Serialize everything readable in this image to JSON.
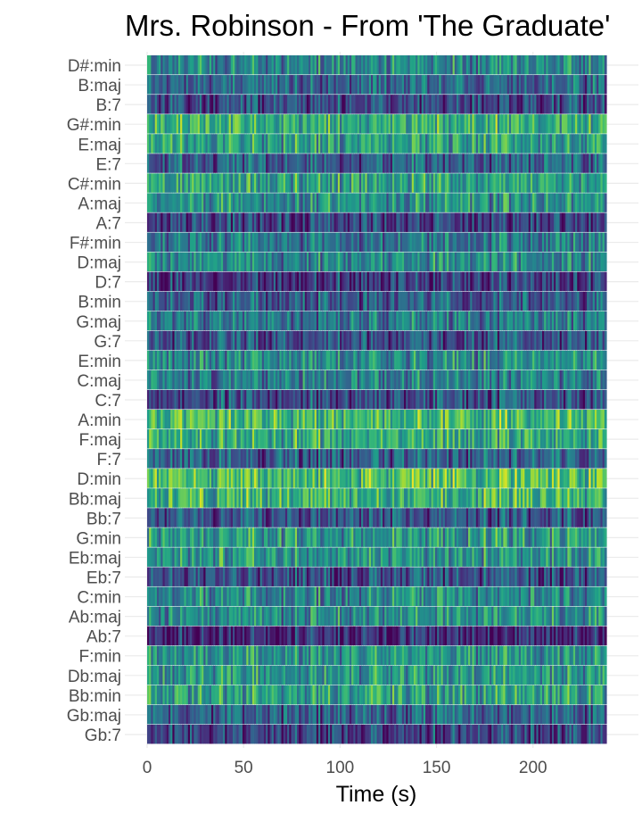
{
  "chart_data": {
    "type": "heatmap",
    "title": "Mrs. Robinson - From 'The Graduate'",
    "xlabel": "Time (s)",
    "ylabel": "",
    "xlim": [
      0,
      238
    ],
    "x_ticks": [
      0,
      50,
      100,
      150,
      200
    ],
    "y_categories": [
      "D#:min",
      "B:maj",
      "B:7",
      "G#:min",
      "E:maj",
      "E:7",
      "C#:min",
      "A:maj",
      "A:7",
      "F#:min",
      "D:maj",
      "D:7",
      "B:min",
      "G:maj",
      "G:7",
      "E:min",
      "C:maj",
      "C:7",
      "A:min",
      "F:maj",
      "F:7",
      "D:min",
      "Bb:maj",
      "Bb:7",
      "G:min",
      "Eb:maj",
      "Eb:7",
      "C:min",
      "Ab:maj",
      "Ab:7",
      "F:min",
      "Db:maj",
      "Bb:min",
      "Gb:maj",
      "Gb:7"
    ],
    "row_mean_level": [
      0.46,
      0.33,
      0.22,
      0.62,
      0.54,
      0.32,
      0.56,
      0.5,
      0.2,
      0.4,
      0.46,
      0.18,
      0.3,
      0.4,
      0.24,
      0.48,
      0.42,
      0.24,
      0.66,
      0.6,
      0.3,
      0.7,
      0.64,
      0.27,
      0.52,
      0.5,
      0.24,
      0.46,
      0.48,
      0.1,
      0.5,
      0.52,
      0.56,
      0.3,
      0.2
    ],
    "color_scale": "viridis",
    "grid": true
  }
}
